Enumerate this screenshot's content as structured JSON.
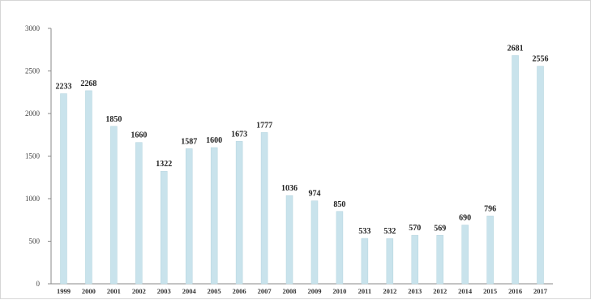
{
  "chart_data": {
    "type": "bar",
    "categories": [
      "1999",
      "2000",
      "2001",
      "2002",
      "2003",
      "2004",
      "2005",
      "2006",
      "2007",
      "2008",
      "2009",
      "2010",
      "2011",
      "2012",
      "2013",
      "2012",
      "2014",
      "2015",
      "2016",
      "2017"
    ],
    "values": [
      2233,
      2268,
      1850,
      1660,
      1322,
      1587,
      1600,
      1673,
      1777,
      1036,
      974,
      850,
      533,
      532,
      570,
      569,
      690,
      796,
      2681,
      2556
    ],
    "value_labels": [
      "2233",
      "2268",
      "1850",
      "1660",
      "1322",
      "1587",
      "1600",
      "1673",
      "1777",
      "1036",
      "974",
      "850",
      "533",
      "532",
      "570",
      "569",
      "690",
      "796",
      "2681",
      "2556"
    ],
    "title": "",
    "xlabel": "",
    "ylabel": "",
    "ylim": [
      0,
      3000
    ],
    "yticks": [
      0,
      500,
      1000,
      1500,
      2000,
      2500,
      3000
    ],
    "ytick_labels": [
      "0",
      "500",
      "1000",
      "1500",
      "2000",
      "2500",
      "3000"
    ],
    "grid": false,
    "legend": "none",
    "colors": {
      "bar": "#c9e3ec",
      "bar_edge": "#b3d3de",
      "axis": "#8a8a8a"
    }
  }
}
